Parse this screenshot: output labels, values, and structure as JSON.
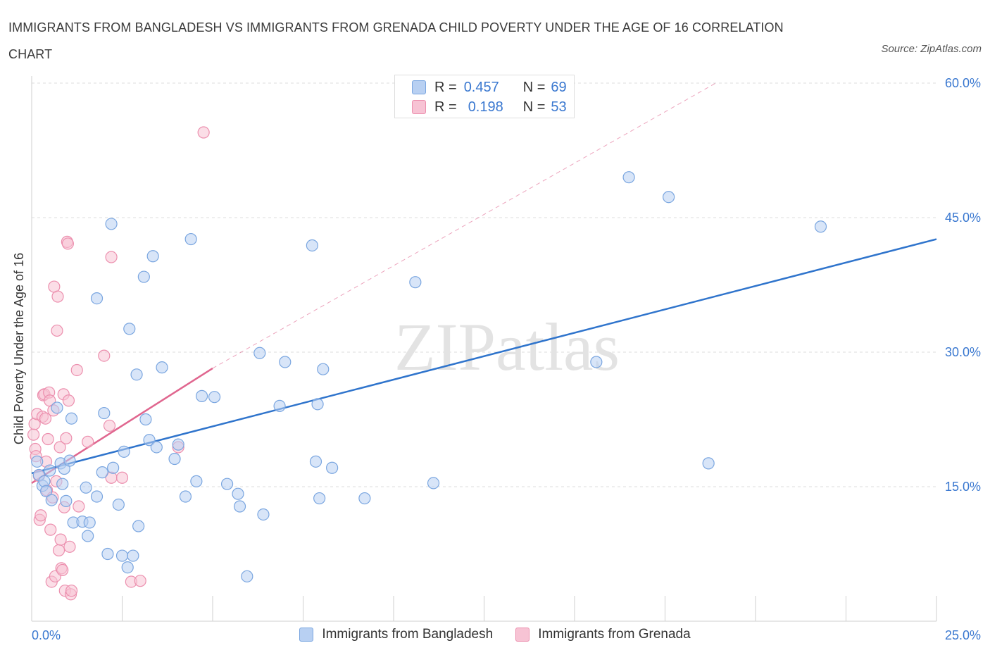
{
  "title": "IMMIGRANTS FROM BANGLADESH VS IMMIGRANTS FROM GRENADA CHILD POVERTY UNDER THE AGE OF 16 CORRELATION CHART",
  "source": "Source: ZipAtlas.com",
  "watermark": "ZIPatlas",
  "legend_top": {
    "rows": [
      {
        "r_label": "R =",
        "r_value": "0.457",
        "n_label": "N =",
        "n_value": "69"
      },
      {
        "r_label": "R =",
        "r_value": "0.198",
        "n_label": "N =",
        "n_value": "53"
      }
    ]
  },
  "colors": {
    "bangladesh_fill": "#b8d0f2",
    "bangladesh_stroke": "#7aa6e0",
    "bangladesh_line": "#2f74cc",
    "grenada_fill": "#f7c3d4",
    "grenada_stroke": "#ec8fae",
    "grenada_line": "#e0668f",
    "axis_label": "#3a78d0",
    "grid": "#dcdcdc"
  },
  "chart_data": {
    "type": "scatter",
    "title": "IMMIGRANTS FROM BANGLADESH VS IMMIGRANTS FROM GRENADA CHILD POVERTY UNDER THE AGE OF 16 CORRELATION CHART",
    "xlabel": "",
    "ylabel": "Child Poverty Under the Age of 16",
    "xlim": [
      0,
      25
    ],
    "ylim": [
      0,
      60
    ],
    "x_tick_labels": [
      "0.0%",
      "25.0%"
    ],
    "y_tick_labels": [
      "15.0%",
      "30.0%",
      "45.0%",
      "60.0%"
    ],
    "y_ticks": [
      15,
      30,
      45,
      60
    ],
    "grid": true,
    "legend_position": "bottom",
    "series": [
      {
        "name": "Immigrants from Bangladesh",
        "trend": {
          "x": [
            0,
            25
          ],
          "y": [
            16.5,
            42.6
          ]
        },
        "points": [
          [
            0.15,
            17.8
          ],
          [
            0.2,
            16.3
          ],
          [
            0.3,
            15.1
          ],
          [
            0.35,
            15.6
          ],
          [
            0.4,
            14.5
          ],
          [
            0.5,
            16.8
          ],
          [
            0.55,
            13.5
          ],
          [
            0.7,
            23.8
          ],
          [
            0.8,
            17.6
          ],
          [
            0.85,
            15.3
          ],
          [
            0.9,
            17.0
          ],
          [
            0.95,
            13.4
          ],
          [
            1.05,
            17.9
          ],
          [
            1.1,
            22.6
          ],
          [
            1.15,
            11.0
          ],
          [
            1.4,
            11.1
          ],
          [
            1.55,
            9.5
          ],
          [
            1.5,
            14.9
          ],
          [
            1.6,
            11.0
          ],
          [
            1.8,
            13.9
          ],
          [
            1.8,
            36.0
          ],
          [
            1.95,
            16.6
          ],
          [
            2.0,
            23.2
          ],
          [
            2.1,
            7.5
          ],
          [
            2.2,
            44.3
          ],
          [
            2.25,
            17.1
          ],
          [
            2.4,
            13.0
          ],
          [
            2.5,
            7.3
          ],
          [
            2.55,
            18.9
          ],
          [
            2.65,
            6.0
          ],
          [
            2.7,
            32.6
          ],
          [
            2.8,
            7.3
          ],
          [
            2.9,
            27.5
          ],
          [
            2.95,
            10.6
          ],
          [
            3.1,
            38.4
          ],
          [
            3.15,
            22.5
          ],
          [
            3.25,
            20.2
          ],
          [
            3.35,
            40.7
          ],
          [
            3.45,
            19.4
          ],
          [
            3.6,
            28.3
          ],
          [
            3.95,
            18.1
          ],
          [
            4.05,
            19.7
          ],
          [
            4.25,
            13.9
          ],
          [
            4.4,
            42.6
          ],
          [
            4.55,
            15.6
          ],
          [
            4.7,
            25.1
          ],
          [
            5.05,
            25.0
          ],
          [
            5.4,
            15.3
          ],
          [
            5.7,
            14.2
          ],
          [
            5.75,
            12.8
          ],
          [
            5.95,
            5.0
          ],
          [
            6.3,
            29.9
          ],
          [
            6.4,
            11.9
          ],
          [
            6.85,
            24.0
          ],
          [
            7.0,
            28.9
          ],
          [
            7.75,
            41.9
          ],
          [
            7.85,
            17.8
          ],
          [
            7.9,
            24.2
          ],
          [
            7.95,
            13.7
          ],
          [
            8.05,
            28.1
          ],
          [
            8.3,
            17.1
          ],
          [
            9.2,
            13.7
          ],
          [
            10.6,
            37.8
          ],
          [
            11.1,
            15.4
          ],
          [
            15.6,
            28.9
          ],
          [
            16.5,
            49.5
          ],
          [
            17.6,
            47.3
          ],
          [
            18.7,
            17.6
          ],
          [
            21.8,
            44.0
          ]
        ]
      },
      {
        "name": "Immigrants from Grenada",
        "trend": {
          "x": [
            0,
            5
          ],
          "y": [
            15.4,
            28.2
          ]
        },
        "trend_dashed": {
          "x": [
            5,
            18.9
          ],
          "y": [
            28.2,
            60.0
          ]
        },
        "points": [
          [
            0.05,
            20.8
          ],
          [
            0.08,
            22.0
          ],
          [
            0.1,
            19.2
          ],
          [
            0.12,
            18.4
          ],
          [
            0.15,
            23.1
          ],
          [
            0.2,
            16.2
          ],
          [
            0.22,
            11.3
          ],
          [
            0.25,
            11.8
          ],
          [
            0.3,
            22.8
          ],
          [
            0.32,
            25.2
          ],
          [
            0.35,
            25.3
          ],
          [
            0.38,
            22.6
          ],
          [
            0.4,
            17.8
          ],
          [
            0.42,
            14.6
          ],
          [
            0.45,
            20.3
          ],
          [
            0.48,
            25.5
          ],
          [
            0.5,
            24.6
          ],
          [
            0.52,
            10.2
          ],
          [
            0.55,
            4.4
          ],
          [
            0.58,
            13.8
          ],
          [
            0.6,
            23.5
          ],
          [
            0.62,
            37.3
          ],
          [
            0.65,
            5.0
          ],
          [
            0.68,
            15.6
          ],
          [
            0.7,
            32.4
          ],
          [
            0.72,
            36.2
          ],
          [
            0.75,
            7.9
          ],
          [
            0.78,
            19.4
          ],
          [
            0.8,
            9.1
          ],
          [
            0.82,
            5.9
          ],
          [
            0.85,
            5.7
          ],
          [
            0.88,
            25.3
          ],
          [
            0.9,
            12.7
          ],
          [
            0.92,
            3.4
          ],
          [
            0.95,
            20.4
          ],
          [
            0.98,
            42.3
          ],
          [
            1.0,
            42.1
          ],
          [
            1.02,
            24.6
          ],
          [
            1.05,
            8.3
          ],
          [
            1.08,
            3.0
          ],
          [
            1.1,
            3.4
          ],
          [
            1.25,
            28.0
          ],
          [
            1.3,
            12.8
          ],
          [
            1.55,
            20.0
          ],
          [
            2.0,
            29.6
          ],
          [
            2.15,
            21.8
          ],
          [
            2.2,
            40.6
          ],
          [
            2.2,
            16.0
          ],
          [
            2.5,
            16.0
          ],
          [
            2.75,
            4.4
          ],
          [
            3.0,
            4.5
          ],
          [
            4.05,
            19.4
          ],
          [
            4.75,
            54.5
          ]
        ]
      }
    ]
  },
  "bottom_legend": [
    {
      "label": "Immigrants from Bangladesh"
    },
    {
      "label": "Immigrants from Grenada"
    }
  ]
}
